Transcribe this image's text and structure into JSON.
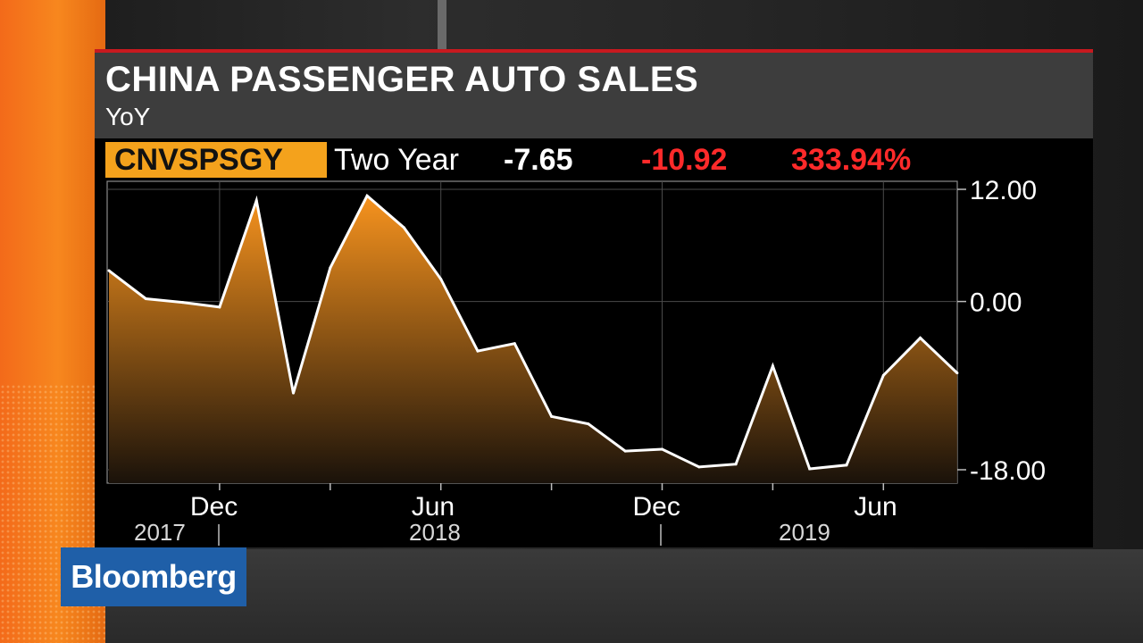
{
  "header": {
    "title": "CHINA PASSENGER AUTO SALES",
    "subtitle": "YoY"
  },
  "ticker": {
    "symbol": "CNVSPSGY",
    "period": "Two Year",
    "last": "-7.65",
    "change": "-10.92",
    "pct_change": "333.94%"
  },
  "logo": {
    "text": "Bloomberg",
    "color": "#1f5fa8"
  },
  "colors": {
    "accent_red": "#c8191f",
    "badge_orange": "#f4a21c",
    "negative": "#ff2a2a",
    "area_top": "#f7931e",
    "area_bottom": "#1a120a",
    "line": "#ffffff"
  },
  "chart_data": {
    "type": "area",
    "title": "CHINA PASSENGER AUTO SALES",
    "subtitle": "YoY",
    "x": [
      "2017-09",
      "2017-10",
      "2017-11",
      "2017-12",
      "2018-01",
      "2018-02",
      "2018-03",
      "2018-04",
      "2018-05",
      "2018-06",
      "2018-07",
      "2018-08",
      "2018-09",
      "2018-10",
      "2018-11",
      "2018-12",
      "2019-01",
      "2019-02",
      "2019-03",
      "2019-04",
      "2019-05",
      "2019-06",
      "2019-07",
      "2019-08"
    ],
    "values": [
      3.3,
      0.3,
      -0.1,
      -0.6,
      10.8,
      -9.8,
      3.6,
      11.3,
      7.9,
      2.4,
      -5.3,
      -4.5,
      -12.3,
      -13.1,
      -16.0,
      -15.8,
      -17.7,
      -17.4,
      -6.9,
      -17.9,
      -17.5,
      -7.9,
      -3.9,
      -7.65
    ],
    "ylim": [
      -18.0,
      12.0
    ],
    "yticks": [
      "12.00",
      "0.00",
      "-18.00"
    ],
    "ytick_values": [
      12,
      0,
      -18
    ],
    "xticks": [
      {
        "month": "Dec",
        "year": "2017",
        "at": "2017-12"
      },
      {
        "month": "Jun",
        "year": "2018",
        "at": "2018-06"
      },
      {
        "month": "Dec",
        "year": "",
        "at": "2018-12"
      },
      {
        "month": "Jun",
        "year": "2019",
        "at": "2019-06"
      }
    ],
    "minor_ticks": [
      "2018-03",
      "2018-09",
      "2019-03"
    ],
    "grid": true
  }
}
